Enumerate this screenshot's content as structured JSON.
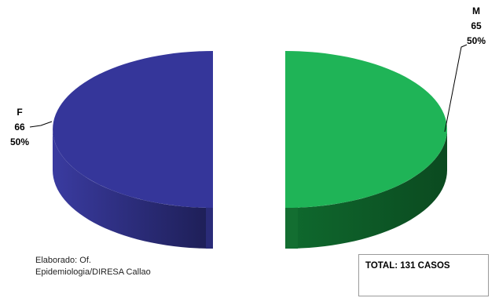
{
  "chart_data": {
    "type": "pie",
    "style": "3d-exploded",
    "slices": [
      {
        "label": "F",
        "count": 66,
        "percent_label": "50%",
        "color_top": "#35369a",
        "color_side": "#232468"
      },
      {
        "label": "M",
        "count": 65,
        "percent_label": "50%",
        "color_top": "#1fb457",
        "color_side": "#10652c"
      }
    ]
  },
  "footer": {
    "credit_line1": "Elaborado: Of.",
    "credit_line2": "Epidemiologia/DIRESA Callao",
    "total": "TOTAL: 131 CASOS"
  }
}
